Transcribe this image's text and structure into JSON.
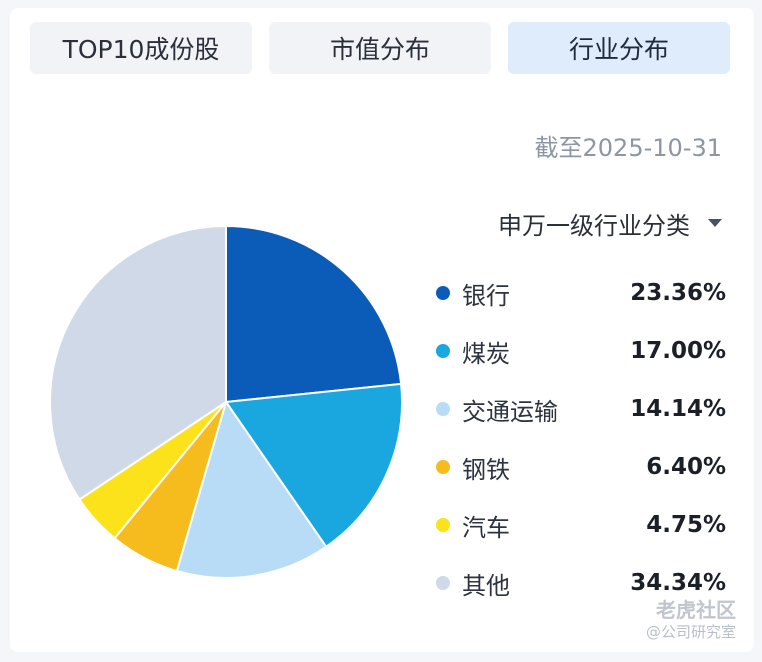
{
  "tabs": [
    {
      "label": "TOP10成份股",
      "active": false
    },
    {
      "label": "市值分布",
      "active": false
    },
    {
      "label": "行业分布",
      "active": true
    }
  ],
  "as_of": "截至2025-10-31",
  "classification_selector": {
    "label": "申万一级行业分类",
    "icon": "caret-down-icon"
  },
  "chart_data": {
    "type": "pie",
    "slices": [
      {
        "label": "银行",
        "value": 23.36,
        "display": "23.36%",
        "color": "#0b5cb8"
      },
      {
        "label": "煤炭",
        "value": 17.0,
        "display": "17.00%",
        "color": "#1aa7df"
      },
      {
        "label": "交通运输",
        "value": 14.14,
        "display": "14.14%",
        "color": "#b8dcf6"
      },
      {
        "label": "钢铁",
        "value": 6.4,
        "display": "6.40%",
        "color": "#f6bc1d"
      },
      {
        "label": "汽车",
        "value": 4.75,
        "display": "4.75%",
        "color": "#fce21a"
      },
      {
        "label": "其他",
        "value": 34.34,
        "display": "34.34%",
        "color": "#cfd9e8"
      }
    ]
  },
  "watermark": {
    "main": "老虎社区",
    "sub": "@公司研究室"
  }
}
